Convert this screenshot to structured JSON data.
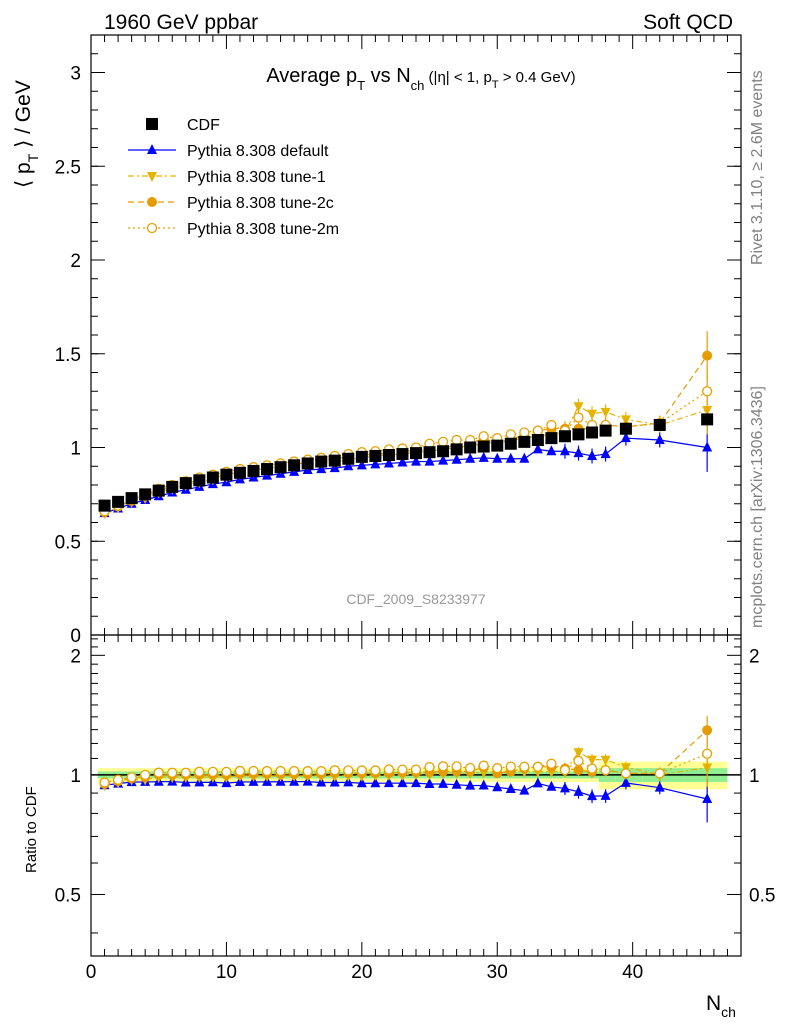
{
  "header": {
    "left": "1960 GeV ppbar",
    "right": "Soft QCD"
  },
  "side_labels": {
    "rivet": "Rivet 3.1.10, ≥ 2.6M events",
    "mcplots": "mcplots.cern.ch [arXiv:1306.3436]"
  },
  "chart_data": {
    "type": "scatter",
    "title": "Average p_T vs N_ch (|η| < 1, p_T > 0.4 GeV)",
    "analysis_label": "CDF_2009_S8233977",
    "xlabel": "N_ch",
    "ylabel": "⟨ p_T ⟩ / GeV",
    "ratio_ylabel": "Ratio to CDF",
    "xlim": [
      0,
      48
    ],
    "ylim": [
      0,
      3.2
    ],
    "ratio_ylim": [
      0.35,
      2.25
    ],
    "x_ticks": [
      "0",
      "10",
      "20",
      "30",
      "40"
    ],
    "y_ticks": [
      "0",
      "0.5",
      "1",
      "1.5",
      "2",
      "2.5",
      "3"
    ],
    "ratio_ticks": [
      "0.5",
      "1",
      "2"
    ],
    "legend_position": "top-left",
    "legend": [
      "CDF",
      "Pythia 8.308 default",
      "Pythia 8.308 tune-1",
      "Pythia 8.308 tune-2c",
      "Pythia 8.308 tune-2m"
    ],
    "x": [
      1,
      2,
      3,
      4,
      5,
      6,
      7,
      8,
      9,
      10,
      11,
      12,
      13,
      14,
      15,
      16,
      17,
      18,
      19,
      20,
      21,
      22,
      23,
      24,
      25,
      26,
      27,
      28,
      29,
      30,
      31,
      32,
      33,
      34,
      35,
      36,
      37,
      38,
      39.5,
      42,
      45.5
    ],
    "series": [
      {
        "name": "CDF",
        "color": "#000000",
        "marker": "square",
        "values": [
          0.69,
          0.71,
          0.73,
          0.75,
          0.77,
          0.79,
          0.81,
          0.825,
          0.84,
          0.855,
          0.865,
          0.875,
          0.885,
          0.895,
          0.905,
          0.915,
          0.925,
          0.93,
          0.94,
          0.95,
          0.955,
          0.96,
          0.965,
          0.97,
          0.975,
          0.98,
          0.99,
          1.0,
          1.005,
          1.01,
          1.02,
          1.03,
          1.04,
          1.05,
          1.06,
          1.07,
          1.08,
          1.09,
          1.1,
          1.12,
          1.15
        ]
      },
      {
        "name": "Pythia 8.308 default",
        "color": "#0000ff",
        "marker": "triangle-up",
        "values": [
          0.65,
          0.675,
          0.7,
          0.72,
          0.74,
          0.76,
          0.775,
          0.79,
          0.805,
          0.815,
          0.83,
          0.84,
          0.85,
          0.86,
          0.87,
          0.88,
          0.885,
          0.89,
          0.9,
          0.905,
          0.91,
          0.915,
          0.92,
          0.925,
          0.925,
          0.93,
          0.935,
          0.94,
          0.945,
          0.94,
          0.94,
          0.94,
          0.99,
          0.98,
          0.98,
          0.97,
          0.955,
          0.965,
          1.05,
          1.04,
          1.0
        ]
      },
      {
        "name": "Pythia 8.308 tune-1",
        "color": "#e6b400",
        "marker": "triangle-down",
        "values": [
          0.65,
          0.68,
          0.71,
          0.73,
          0.76,
          0.78,
          0.8,
          0.815,
          0.83,
          0.845,
          0.86,
          0.87,
          0.88,
          0.89,
          0.9,
          0.91,
          0.92,
          0.925,
          0.935,
          0.945,
          0.955,
          0.96,
          0.965,
          0.975,
          0.98,
          0.99,
          1.0,
          1.01,
          1.02,
          1.03,
          1.04,
          1.05,
          1.06,
          1.07,
          1.08,
          1.22,
          1.18,
          1.19,
          1.15,
          1.12,
          1.2
        ]
      },
      {
        "name": "Pythia 8.308 tune-2c",
        "color": "#e69b00",
        "marker": "circle",
        "values": [
          0.655,
          0.685,
          0.715,
          0.74,
          0.77,
          0.79,
          0.81,
          0.825,
          0.84,
          0.855,
          0.87,
          0.88,
          0.89,
          0.9,
          0.91,
          0.92,
          0.93,
          0.94,
          0.95,
          0.96,
          0.965,
          0.97,
          0.98,
          0.985,
          0.99,
          1.0,
          1.01,
          1.02,
          1.05,
          1.02,
          1.04,
          1.07,
          1.09,
          1.1,
          1.1,
          1.1,
          1.1,
          1.12,
          1.11,
          1.13,
          1.49
        ]
      },
      {
        "name": "Pythia 8.308 tune-2m",
        "color": "#e6a000",
        "marker": "circle-open",
        "values": [
          0.66,
          0.69,
          0.72,
          0.75,
          0.78,
          0.8,
          0.82,
          0.84,
          0.855,
          0.87,
          0.885,
          0.895,
          0.905,
          0.915,
          0.925,
          0.935,
          0.945,
          0.955,
          0.965,
          0.975,
          0.98,
          0.99,
          0.995,
          1.0,
          1.02,
          1.03,
          1.04,
          1.04,
          1.06,
          1.05,
          1.07,
          1.08,
          1.09,
          1.12,
          1.09,
          1.16,
          1.12,
          1.12,
          1.11,
          1.13,
          1.3
        ]
      }
    ]
  }
}
